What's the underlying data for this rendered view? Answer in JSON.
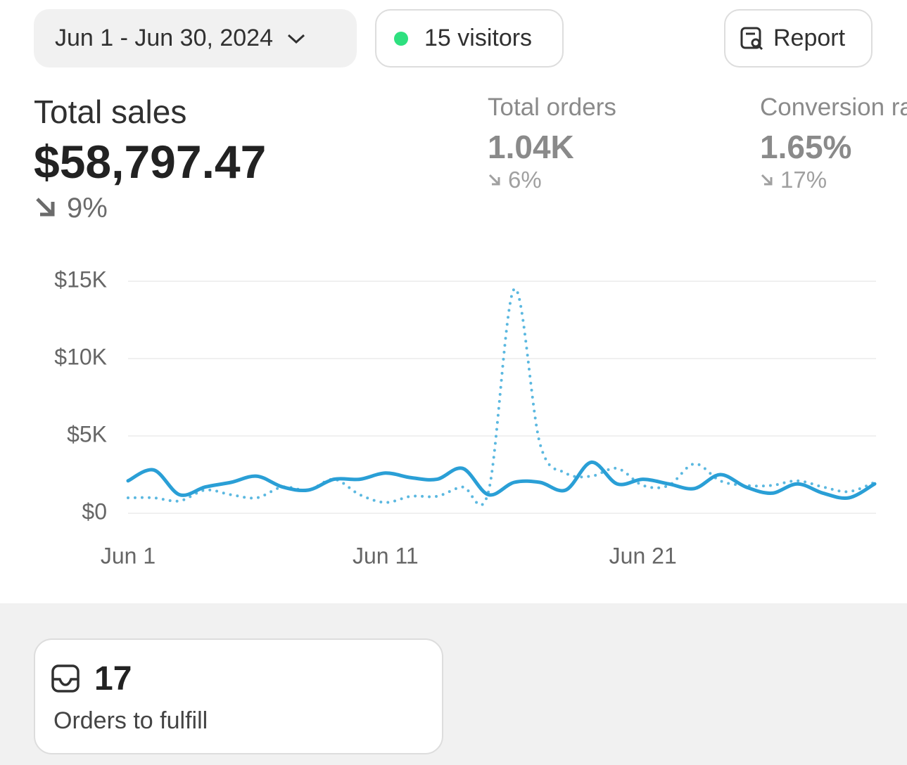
{
  "header": {
    "date_range": "Jun 1 - Jun 30, 2024",
    "visitors": "15 visitors",
    "report": "Report"
  },
  "metrics": [
    {
      "label": "Total sales",
      "value": "$58,797.47",
      "change": "9%"
    },
    {
      "label": "Total orders",
      "value": "1.04K",
      "change": "6%"
    },
    {
      "label": "Conversion rate",
      "value": "1.65%",
      "change": "17%"
    }
  ],
  "chart_data": {
    "type": "line",
    "categories": [
      "Jun 1",
      null,
      null,
      null,
      null,
      null,
      null,
      null,
      null,
      null,
      "Jun 11",
      null,
      null,
      null,
      null,
      null,
      null,
      null,
      null,
      null,
      "Jun 21",
      null,
      null,
      null,
      null,
      null,
      null,
      null,
      null,
      null
    ],
    "series": [
      {
        "color": "#2a9fd6",
        "style": "solid",
        "values": [
          2100,
          2800,
          1200,
          1700,
          2000,
          2400,
          1700,
          1500,
          2200,
          2200,
          2600,
          2300,
          2200,
          2900,
          1200,
          2000,
          2000,
          1500,
          3300,
          1900,
          2200,
          1900,
          1600,
          2500,
          1700,
          1300,
          1900,
          1300,
          1000,
          1900
        ]
      },
      {
        "color": "#5bb8e0",
        "style": "dotted",
        "values": [
          1000,
          1000,
          800,
          1500,
          1200,
          1000,
          1700,
          1500,
          2200,
          1200,
          700,
          1100,
          1100,
          1700,
          1400,
          14500,
          4500,
          2600,
          2400,
          2900,
          1800,
          1800,
          3200,
          2100,
          1800,
          1800,
          2100,
          1700,
          1400,
          2000
        ]
      }
    ],
    "ylim": [
      0,
      15000
    ],
    "yticks": [
      {
        "value": 0,
        "label": "$0"
      },
      {
        "value": 5000,
        "label": "$5K"
      },
      {
        "value": 10000,
        "label": "$10K"
      },
      {
        "value": 15000,
        "label": "$15K"
      }
    ],
    "grid": true
  },
  "tasks": {
    "count": "17",
    "label": "Orders to fulfill"
  }
}
